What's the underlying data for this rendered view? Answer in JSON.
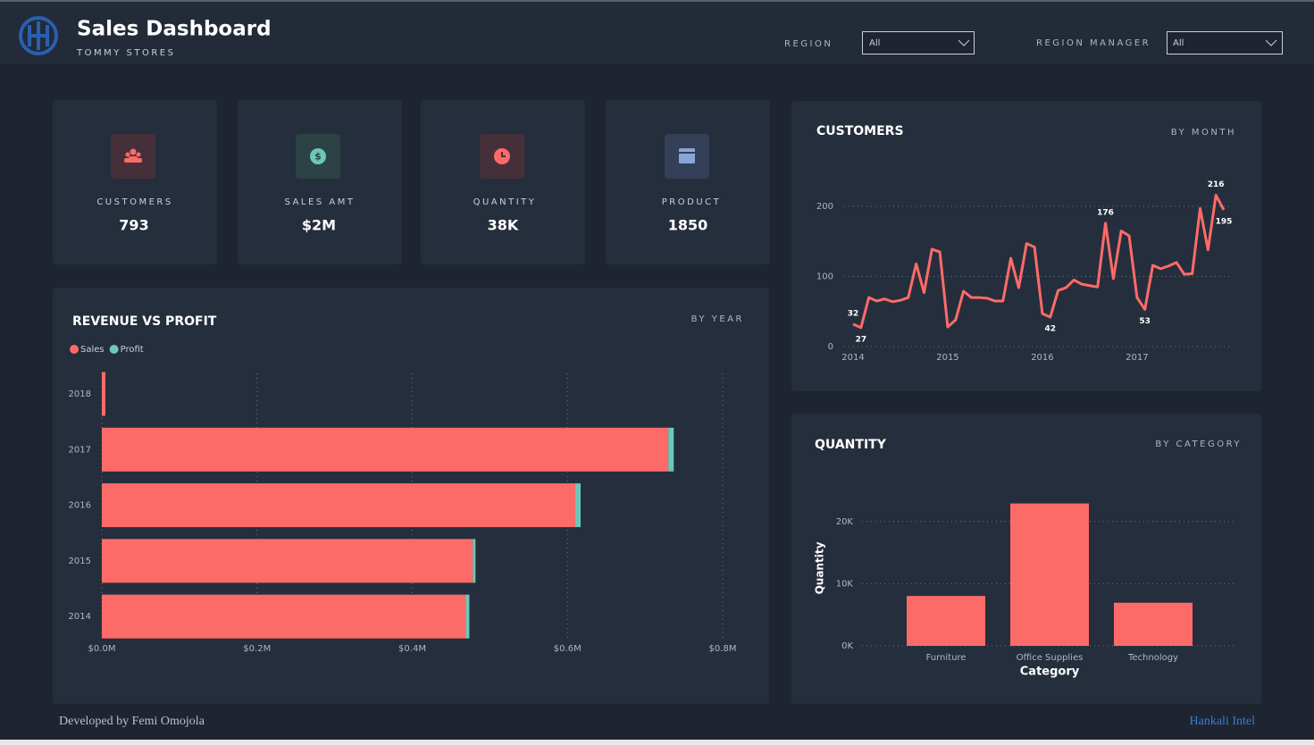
{
  "header": {
    "title": "Sales Dashboard",
    "subtitle": "TOMMY STORES",
    "filters": [
      {
        "label": "REGION",
        "value": "All"
      },
      {
        "label": "REGION MANAGER",
        "value": "All"
      }
    ]
  },
  "kpis": [
    {
      "label": "CUSTOMERS",
      "value": "793"
    },
    {
      "label": "SALES AMT",
      "value": "$2M"
    },
    {
      "label": "QUANTITY",
      "value": "38K"
    },
    {
      "label": "PRODUCT",
      "value": "1850"
    }
  ],
  "chart_data": [
    {
      "type": "bar",
      "orientation": "horizontal",
      "stacked": true,
      "title": "REVENUE VS PROFIT",
      "subtitle": "BY YEAR",
      "categories": [
        "2018",
        "2017",
        "2016",
        "2015",
        "2014"
      ],
      "series": [
        {
          "name": "Sales",
          "color": "#fd6b68",
          "values": [
            4600,
            730000,
            610000,
            478000,
            469000
          ]
        },
        {
          "name": "Profit",
          "color": "#6cc7b8",
          "values": [
            0,
            7000,
            7000,
            3500,
            4600
          ]
        }
      ],
      "xlim": [
        0,
        800000
      ],
      "xticks": [
        {
          "value": 0,
          "label": "$0.0M"
        },
        {
          "value": 200000,
          "label": "$0.2M"
        },
        {
          "value": 400000,
          "label": "$0.4M"
        },
        {
          "value": 600000,
          "label": "$0.6M"
        },
        {
          "value": 800000,
          "label": "$0.8M"
        }
      ],
      "grid": true,
      "legend": "top-left"
    },
    {
      "type": "line",
      "title": "CUSTOMERS",
      "subtitle": "BY MONTH",
      "categories": [
        "2014",
        null,
        null,
        null,
        null,
        null,
        null,
        null,
        null,
        null,
        null,
        null,
        "2015",
        null,
        null,
        null,
        null,
        null,
        null,
        null,
        null,
        null,
        null,
        null,
        "2016",
        null,
        null,
        null,
        null,
        null,
        null,
        null,
        null,
        null,
        null,
        null,
        "2017",
        null,
        null,
        null,
        null,
        null,
        null,
        null,
        null,
        null,
        null,
        null
      ],
      "values": [
        32,
        27,
        70,
        65,
        68,
        64,
        66,
        70,
        118,
        77,
        139,
        135,
        28,
        38,
        79,
        70,
        70,
        69,
        65,
        65,
        126,
        84,
        147,
        142,
        47,
        42,
        80,
        84,
        95,
        89,
        87,
        85,
        176,
        97,
        165,
        158,
        70,
        53,
        116,
        111,
        115,
        120,
        103,
        104,
        197,
        138,
        216,
        195
      ],
      "value_labels": [
        "32",
        "27",
        null,
        null,
        null,
        null,
        null,
        null,
        null,
        null,
        null,
        null,
        null,
        null,
        null,
        null,
        null,
        null,
        null,
        null,
        null,
        null,
        null,
        null,
        null,
        "42",
        null,
        null,
        null,
        null,
        null,
        null,
        "176",
        null,
        null,
        null,
        null,
        "53",
        null,
        null,
        null,
        null,
        null,
        null,
        null,
        null,
        "216",
        "195"
      ],
      "color": "#fd6b68",
      "ylim": [
        0,
        230
      ],
      "yticks": [
        0,
        100,
        200
      ],
      "grid": true
    },
    {
      "type": "bar",
      "orientation": "vertical",
      "title": "QUANTITY",
      "subtitle": "BY CATEGORY",
      "x_label": "Category",
      "y_label": "Quantity",
      "categories": [
        "Furniture",
        "Office Supplies",
        "Technology"
      ],
      "values": [
        8028,
        22906,
        6939
      ],
      "color": "#fd6b68",
      "ylim": [
        0,
        24000
      ],
      "yticks": [
        {
          "value": 0,
          "label": "0K"
        },
        {
          "value": 10000,
          "label": "10K"
        },
        {
          "value": 20000,
          "label": "20K"
        }
      ],
      "grid": true
    }
  ],
  "footer": {
    "left": "Developed by Femi Omojola",
    "right": "Hankali Intel"
  }
}
